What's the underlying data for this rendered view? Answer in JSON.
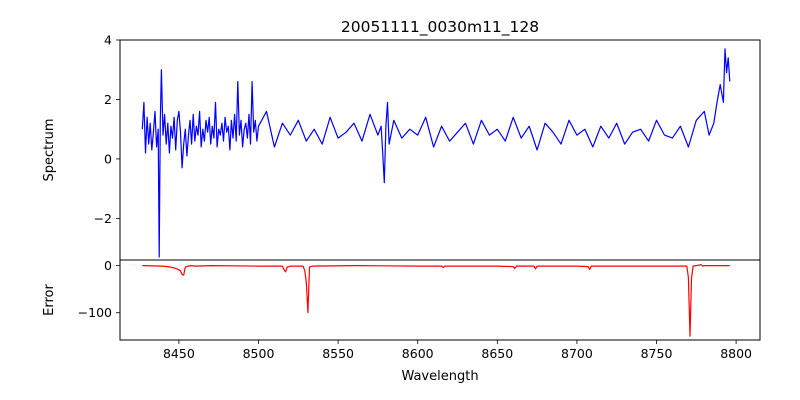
{
  "figure": {
    "title": "20051111_0030m11_128"
  },
  "chart_data": [
    {
      "type": "line",
      "panel": "top",
      "ylabel": "Spectrum",
      "xlabel": "",
      "xlim": [
        8413,
        8815
      ],
      "ylim": [
        -3.4,
        4.0
      ],
      "yticks": [
        -2,
        0,
        2,
        4
      ],
      "ytick_labels": [
        "−2",
        "0",
        "2",
        "4"
      ],
      "series": [
        {
          "color": "#0000ff",
          "x": [
            8427,
            8428,
            8429,
            8430,
            8431,
            8432,
            8433,
            8434,
            8435,
            8436,
            8437,
            8437.6,
            8438.3,
            8439,
            8440,
            8441,
            8442,
            8443,
            8444,
            8445,
            8446,
            8447,
            8448,
            8449,
            8450,
            8451,
            8452,
            8453,
            8454,
            8455,
            8456,
            8457,
            8458,
            8459,
            8460,
            8461,
            8462,
            8463,
            8464,
            8465,
            8466,
            8467,
            8468,
            8469,
            8470,
            8471,
            8472,
            8473,
            8474,
            8475,
            8476,
            8477,
            8478,
            8479,
            8480,
            8481,
            8482,
            8483,
            8484,
            8485,
            8486,
            8487,
            8488,
            8489,
            8490,
            8491,
            8492,
            8493,
            8494,
            8495,
            8496,
            8497,
            8498,
            8499,
            8500,
            8505,
            8510,
            8515,
            8520,
            8525,
            8530,
            8535,
            8540,
            8545,
            8550,
            8555,
            8560,
            8565,
            8570,
            8575,
            8577,
            8578,
            8579,
            8580,
            8581,
            8582,
            8585,
            8590,
            8595,
            8600,
            8605,
            8610,
            8615,
            8620,
            8625,
            8630,
            8635,
            8640,
            8645,
            8650,
            8655,
            8660,
            8665,
            8670,
            8675,
            8680,
            8685,
            8690,
            8695,
            8700,
            8705,
            8710,
            8715,
            8720,
            8725,
            8730,
            8735,
            8740,
            8745,
            8750,
            8755,
            8760,
            8765,
            8770,
            8775,
            8780,
            8783,
            8786,
            8788,
            8790,
            8792,
            8793,
            8794,
            8795,
            8796
          ],
          "values": [
            1.0,
            1.9,
            0.2,
            1.4,
            0.5,
            1.2,
            0.3,
            0.9,
            1.6,
            0.4,
            1.0,
            -3.3,
            1.3,
            3.0,
            0.8,
            1.5,
            0.5,
            1.2,
            0.2,
            1.1,
            0.7,
            1.4,
            0.3,
            1.3,
            1.6,
            0.9,
            -0.3,
            0.5,
            1.0,
            0.1,
            0.8,
            1.3,
            0.5,
            1.5,
            0.6,
            1.1,
            0.8,
            1.6,
            0.4,
            1.0,
            0.6,
            1.3,
            0.9,
            1.4,
            0.5,
            1.1,
            0.7,
            1.9,
            0.4,
            1.0,
            0.8,
            1.2,
            0.6,
            1.4,
            0.9,
            1.1,
            0.3,
            1.3,
            0.7,
            1.5,
            0.6,
            2.6,
            0.8,
            1.3,
            0.4,
            1.0,
            1.2,
            0.7,
            1.5,
            0.5,
            2.6,
            0.9,
            1.3,
            0.6,
            1.1,
            1.6,
            0.4,
            1.2,
            0.8,
            1.3,
            0.6,
            1.0,
            0.5,
            1.4,
            0.7,
            0.9,
            1.2,
            0.6,
            1.5,
            0.8,
            1.1,
            0.2,
            -0.8,
            1.1,
            1.9,
            0.5,
            1.3,
            0.7,
            1.0,
            0.8,
            1.4,
            0.4,
            1.1,
            0.6,
            0.9,
            1.2,
            0.5,
            1.3,
            0.8,
            1.0,
            0.6,
            1.4,
            0.7,
            1.1,
            0.3,
            1.2,
            0.9,
            0.5,
            1.3,
            0.8,
            1.0,
            0.4,
            1.1,
            0.7,
            1.2,
            0.5,
            0.9,
            1.0,
            0.6,
            1.3,
            0.8,
            0.7,
            1.1,
            0.4,
            1.3,
            1.6,
            0.8,
            1.2,
            1.9,
            2.5,
            1.9,
            3.7,
            2.9,
            3.4,
            2.6
          ]
        }
      ]
    },
    {
      "type": "line",
      "panel": "bottom",
      "ylabel": "Error",
      "xlabel": "Wavelength",
      "xlim": [
        8413,
        8815
      ],
      "ylim": [
        -158,
        12
      ],
      "yticks": [
        -100,
        0
      ],
      "ytick_labels": [
        "−100",
        "0"
      ],
      "xticks": [
        8450,
        8500,
        8550,
        8600,
        8650,
        8700,
        8750,
        8800
      ],
      "xtick_labels": [
        "8450",
        "8500",
        "8550",
        "8600",
        "8650",
        "8700",
        "8750",
        "8800"
      ],
      "series": [
        {
          "color": "#ff0000",
          "x": [
            8427,
            8440,
            8445,
            8449,
            8451,
            8452,
            8453,
            8454,
            8456,
            8458,
            8460,
            8470,
            8500,
            8515,
            8516,
            8517,
            8518,
            8520,
            8528,
            8529,
            8530,
            8531,
            8532,
            8534,
            8560,
            8600,
            8615,
            8616,
            8617,
            8650,
            8660,
            8661,
            8662,
            8673,
            8674,
            8675,
            8700,
            8707,
            8708,
            8709,
            8720,
            8769,
            8770,
            8771,
            8772,
            8773,
            8775,
            8778,
            8779,
            8780,
            8796
          ],
          "values": [
            0,
            -1,
            -3,
            -7,
            -11,
            -19,
            -20,
            -3,
            -1,
            0,
            -1,
            0,
            -1,
            -1,
            -9,
            -13,
            -3,
            -1,
            -1,
            -10,
            -35,
            -100,
            -3,
            -1,
            0,
            -1,
            -1,
            -4,
            -1,
            -1,
            -2,
            -6,
            -1,
            -1,
            -7,
            -1,
            -1,
            -2,
            -8,
            -1,
            -1,
            -1,
            -25,
            -150,
            -27,
            -1,
            0,
            2,
            -1,
            0,
            0
          ]
        }
      ]
    }
  ]
}
